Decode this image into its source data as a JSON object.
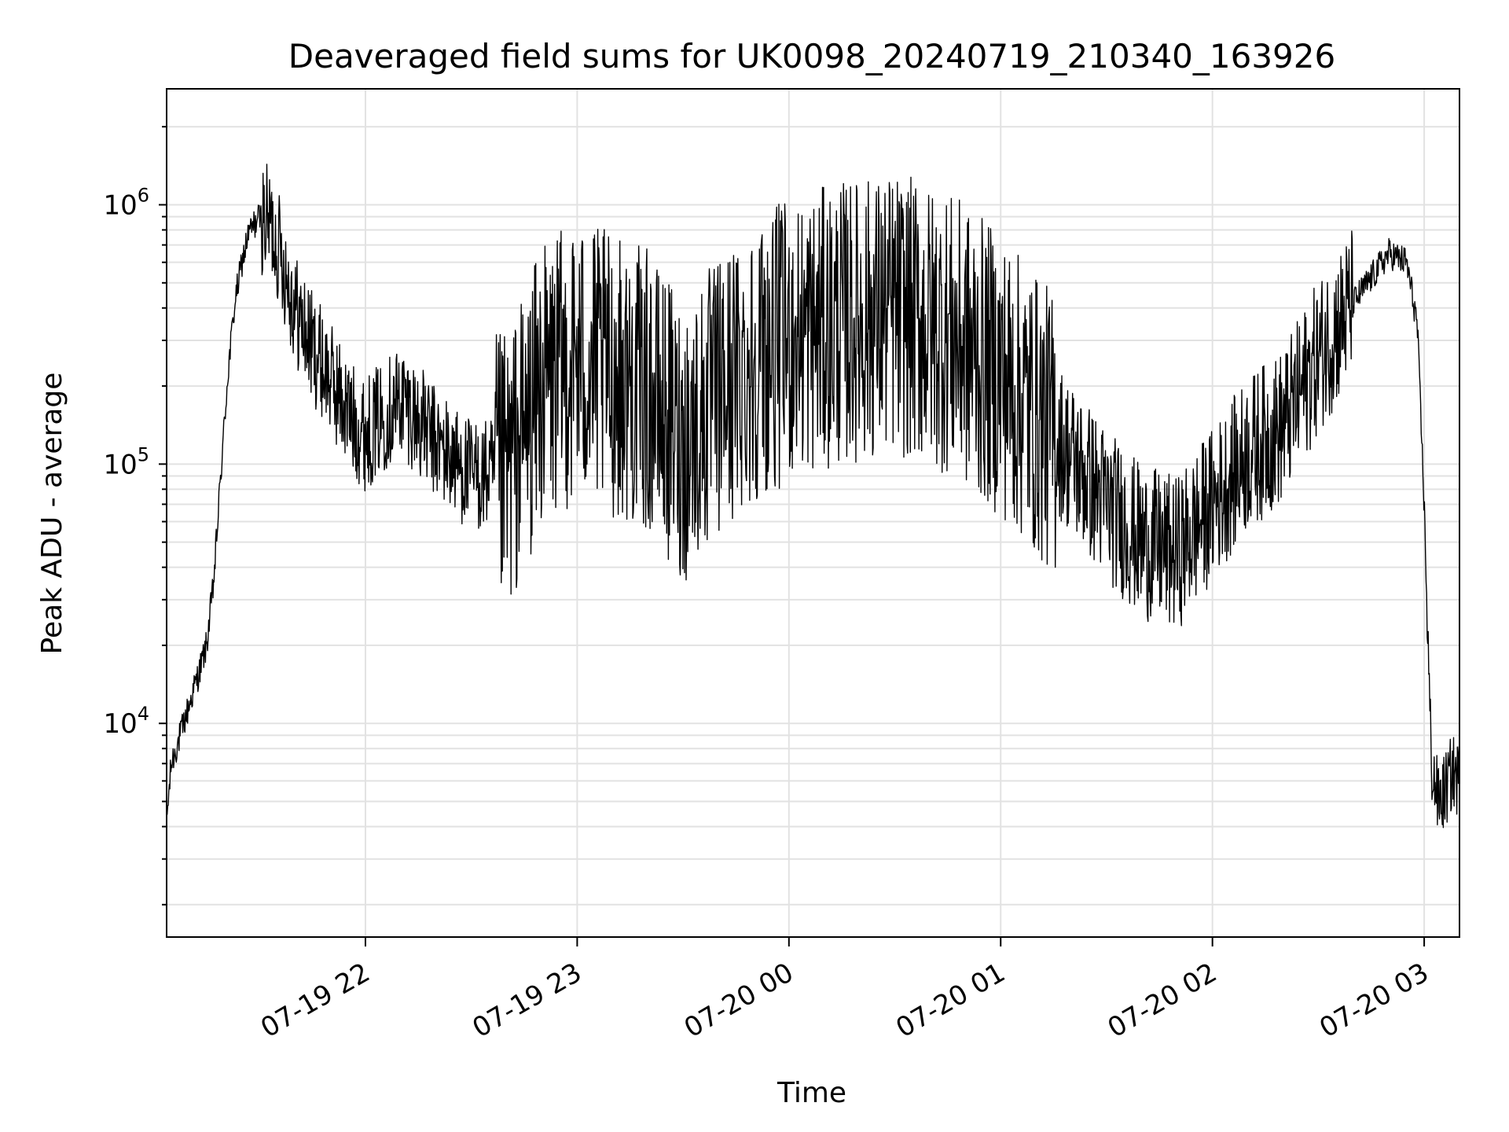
{
  "chart_data": {
    "type": "line",
    "title": "Deaveraged field sums for UK0098_20240719_210340_163926",
    "xlabel": "Time",
    "ylabel": "Peak ADU - average",
    "y_scale": "log",
    "x_range": [
      "2024-07-19T21:03:40",
      "2024-07-20T03:10:00"
    ],
    "ylim": [
      1500,
      2800000
    ],
    "grid": true,
    "x_ticks": [
      {
        "t": "2024-07-19T22:00:00",
        "label": "07-19 22"
      },
      {
        "t": "2024-07-19T23:00:00",
        "label": "07-19 23"
      },
      {
        "t": "2024-07-20T00:00:00",
        "label": "07-20 00"
      },
      {
        "t": "2024-07-20T01:00:00",
        "label": "07-20 01"
      },
      {
        "t": "2024-07-20T02:00:00",
        "label": "07-20 02"
      },
      {
        "t": "2024-07-20T03:00:00",
        "label": "07-20 03"
      }
    ],
    "y_ticks": [
      {
        "value": 10000,
        "base": "10",
        "exp": "4"
      },
      {
        "value": 100000,
        "base": "10",
        "exp": "5"
      },
      {
        "value": 1000000,
        "base": "10",
        "exp": "6"
      }
    ],
    "line_color": "#000000",
    "series": [
      {
        "x": [
          "2024-07-19T21:03:40",
          "2024-07-19T21:05:00",
          "2024-07-19T21:07:00",
          "2024-07-19T21:09:00",
          "2024-07-19T21:11:00",
          "2024-07-19T21:13:00",
          "2024-07-19T21:15:00",
          "2024-07-19T21:17:00",
          "2024-07-19T21:19:00",
          "2024-07-19T21:21:00",
          "2024-07-19T21:23:00",
          "2024-07-19T21:25:00",
          "2024-07-19T21:27:00",
          "2024-07-19T21:30:00",
          "2024-07-19T21:33:00",
          "2024-07-19T21:36:00",
          "2024-07-19T21:40:00",
          "2024-07-19T21:44:00",
          "2024-07-19T21:48:00",
          "2024-07-19T21:52:00",
          "2024-07-19T21:56:00",
          "2024-07-19T22:00:00",
          "2024-07-19T22:10:00",
          "2024-07-19T22:20:00",
          "2024-07-19T22:30:00",
          "2024-07-19T22:40:00",
          "2024-07-19T22:50:00",
          "2024-07-19T23:00:00",
          "2024-07-19T23:10:00",
          "2024-07-19T23:20:00",
          "2024-07-19T23:30:00",
          "2024-07-19T23:40:00",
          "2024-07-19T23:50:00",
          "2024-07-20T00:00:00",
          "2024-07-20T00:15:00",
          "2024-07-20T00:30:00",
          "2024-07-20T00:45:00",
          "2024-07-20T01:00:00",
          "2024-07-20T01:15:00",
          "2024-07-20T01:30:00",
          "2024-07-20T01:40:00",
          "2024-07-20T01:50:00",
          "2024-07-20T02:00:00",
          "2024-07-20T02:10:00",
          "2024-07-20T02:20:00",
          "2024-07-20T02:30:00",
          "2024-07-20T02:40:00",
          "2024-07-20T02:50:00",
          "2024-07-20T02:55:00",
          "2024-07-20T02:58:00",
          "2024-07-20T03:00:00",
          "2024-07-20T03:02:00",
          "2024-07-20T03:04:00",
          "2024-07-20T03:06:00",
          "2024-07-20T03:08:00",
          "2024-07-20T03:10:00"
        ],
        "values": [
          4200,
          7000,
          8500,
          10500,
          13000,
          16000,
          20000,
          35000,
          90000,
          220000,
          420000,
          600000,
          780000,
          900000,
          850000,
          650000,
          400000,
          300000,
          240000,
          190000,
          150000,
          130000,
          180000,
          120000,
          90000,
          90000,
          200000,
          250000,
          220000,
          190000,
          120000,
          180000,
          250000,
          300000,
          350000,
          380000,
          320000,
          220000,
          130000,
          70000,
          50000,
          45000,
          70000,
          110000,
          140000,
          260000,
          420000,
          650000,
          600000,
          350000,
          70000,
          7000,
          5000,
          5500,
          6500,
          6000
        ]
      }
    ]
  }
}
